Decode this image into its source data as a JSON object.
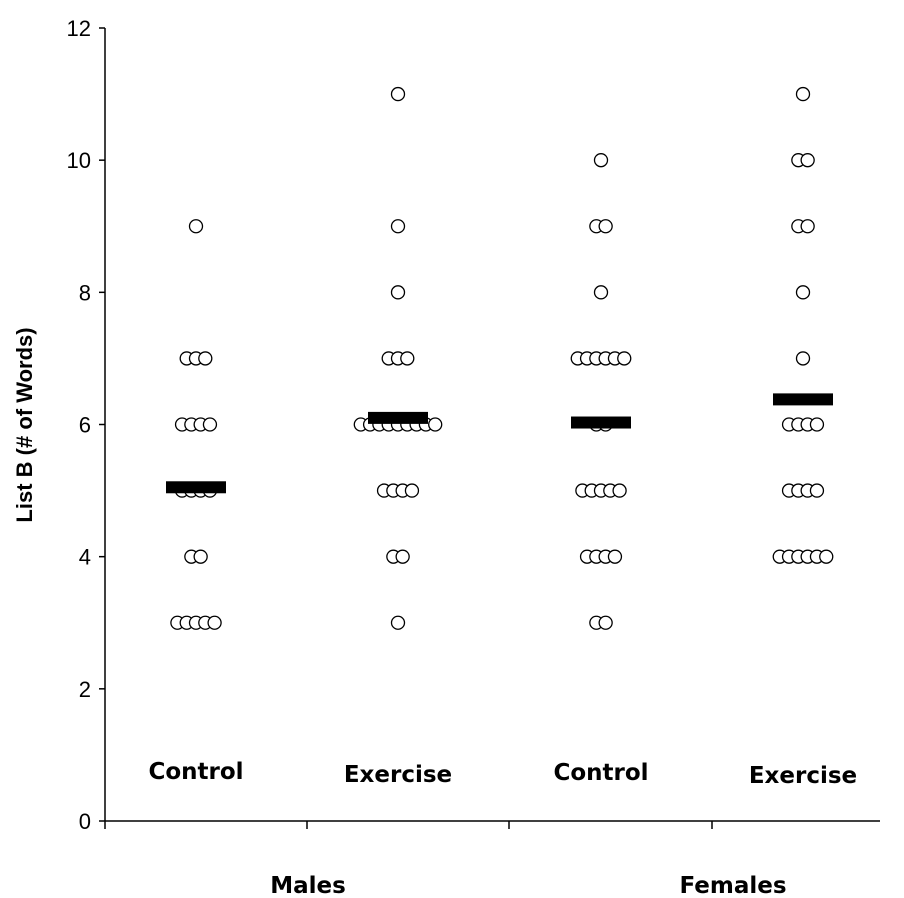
{
  "chart_data": {
    "type": "scatter",
    "title": "",
    "ylabel": "List B (# of Words)",
    "xlabel": "",
    "ylim": [
      0,
      12
    ],
    "yticks": [
      0,
      2,
      4,
      6,
      8,
      10,
      12
    ],
    "grid": false,
    "major_categories": [
      "Males",
      "Females"
    ],
    "groups": [
      {
        "label": "Control",
        "major": "Males",
        "mean": 5.05,
        "points": [
          {
            "y": 9,
            "count": 1
          },
          {
            "y": 7,
            "count": 3
          },
          {
            "y": 6,
            "count": 4
          },
          {
            "y": 5,
            "count": 4
          },
          {
            "y": 4,
            "count": 2
          },
          {
            "y": 3,
            "count": 5
          }
        ]
      },
      {
        "label": "Exercise",
        "major": "Males",
        "mean": 6.1,
        "points": [
          {
            "y": 11,
            "count": 1
          },
          {
            "y": 9,
            "count": 1
          },
          {
            "y": 8,
            "count": 1
          },
          {
            "y": 7,
            "count": 3
          },
          {
            "y": 6,
            "count": 9
          },
          {
            "y": 5,
            "count": 4
          },
          {
            "y": 4,
            "count": 2
          },
          {
            "y": 3,
            "count": 1
          }
        ]
      },
      {
        "label": "Control",
        "major": "Females",
        "mean": 6.03,
        "points": [
          {
            "y": 10,
            "count": 1
          },
          {
            "y": 9,
            "count": 2
          },
          {
            "y": 8,
            "count": 1
          },
          {
            "y": 7,
            "count": 6
          },
          {
            "y": 6,
            "count": 2
          },
          {
            "y": 5,
            "count": 5
          },
          {
            "y": 4,
            "count": 4
          },
          {
            "y": 3,
            "count": 2
          }
        ]
      },
      {
        "label": "Exercise",
        "major": "Females",
        "mean": 6.38,
        "points": [
          {
            "y": 11,
            "count": 1
          },
          {
            "y": 10,
            "count": 2
          },
          {
            "y": 9,
            "count": 2
          },
          {
            "y": 8,
            "count": 1
          },
          {
            "y": 7,
            "count": 1
          },
          {
            "y": 6,
            "count": 4
          },
          {
            "y": 5,
            "count": 4
          },
          {
            "y": 4,
            "count": 6
          }
        ]
      }
    ]
  }
}
